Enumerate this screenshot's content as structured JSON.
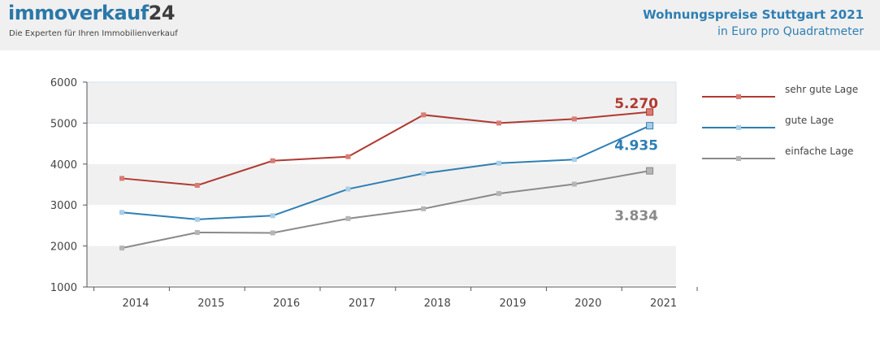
{
  "header": {
    "logo_main": "immoverkauf",
    "logo_num": "24",
    "tagline": "Die Experten für Ihren Immobilienverkauf",
    "title": "Wohnungspreise Stuttgart 2021",
    "subtitle": "in Euro pro Quadratmeter"
  },
  "chart_data": {
    "type": "line",
    "title": "Wohnungspreise Stuttgart 2021",
    "subtitle": "in Euro pro Quadratmeter",
    "xlabel": "",
    "ylabel": "",
    "x": [
      "2014",
      "2015",
      "2016",
      "2017",
      "2018",
      "2019",
      "2020",
      "2021"
    ],
    "ylim": [
      1000,
      6000
    ],
    "yticks": [
      1000,
      2000,
      3000,
      4000,
      5000,
      6000
    ],
    "grid": "alternating horizontal bands",
    "legend": "right",
    "series": [
      {
        "name": "sehr gute Lage",
        "color": "#b03a32",
        "marker_color": "#d97c74",
        "values": [
          3650,
          3480,
          4080,
          4180,
          5200,
          5000,
          5100,
          5270
        ],
        "end_label": "5.270"
      },
      {
        "name": "gute Lage",
        "color": "#2e7fb3",
        "marker_color": "#a9cfe8",
        "values": [
          2820,
          2650,
          2740,
          3390,
          3770,
          4020,
          4110,
          4935
        ],
        "end_label": "4.935"
      },
      {
        "name": "einfache Lage",
        "color": "#8a8a8a",
        "marker_color": "#b5b5b5",
        "values": [
          1950,
          2330,
          2320,
          2670,
          2910,
          3280,
          3510,
          3834
        ],
        "end_label": "3.834"
      }
    ]
  }
}
